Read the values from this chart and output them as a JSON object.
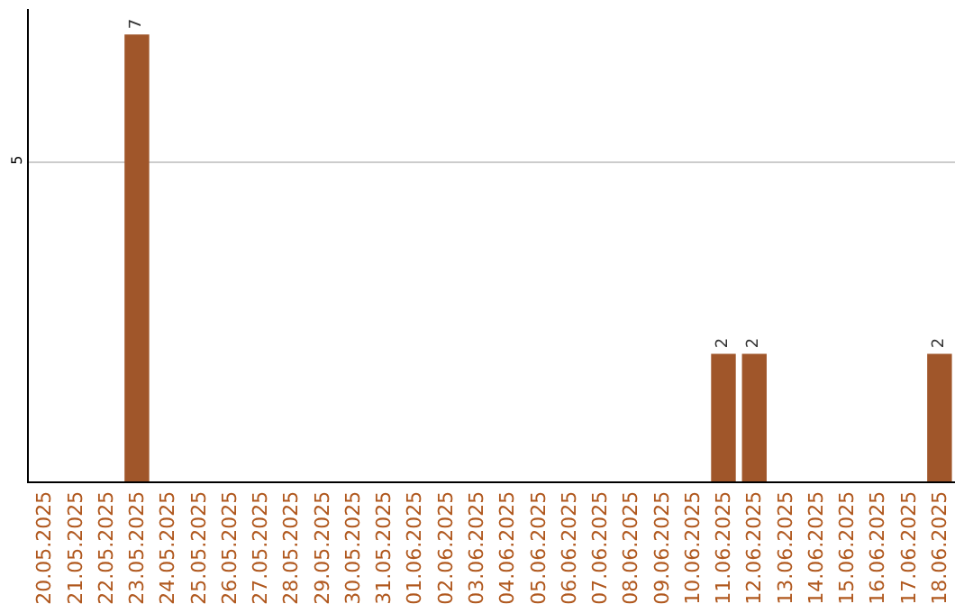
{
  "chart_data": {
    "type": "bar",
    "categories": [
      "20.05.2025",
      "21.05.2025",
      "22.05.2025",
      "23.05.2025",
      "24.05.2025",
      "25.05.2025",
      "26.05.2025",
      "27.05.2025",
      "28.05.2025",
      "29.05.2025",
      "30.05.2025",
      "31.05.2025",
      "01.06.2025",
      "02.06.2025",
      "03.06.2025",
      "04.06.2025",
      "05.06.2025",
      "06.06.2025",
      "07.06.2025",
      "08.06.2025",
      "09.06.2025",
      "10.06.2025",
      "11.06.2025",
      "12.06.2025",
      "13.06.2025",
      "14.06.2025",
      "15.06.2025",
      "16.06.2025",
      "17.06.2025",
      "18.06.2025"
    ],
    "values": [
      null,
      null,
      null,
      7,
      null,
      null,
      null,
      null,
      null,
      null,
      null,
      null,
      null,
      null,
      null,
      null,
      null,
      null,
      null,
      null,
      null,
      null,
      2,
      2,
      null,
      null,
      null,
      null,
      null,
      2
    ],
    "color": "#a0562a",
    "ylim": [
      0,
      7.4
    ],
    "yticks": [
      5
    ],
    "grid": "y",
    "data_labels": true,
    "legend": false
  }
}
